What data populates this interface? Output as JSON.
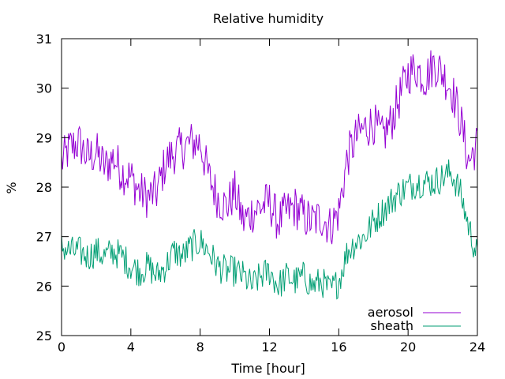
{
  "chart_data": {
    "type": "line",
    "title": "Relative humidity",
    "xlabel": "Time [hour]",
    "ylabel": "%",
    "xlim": [
      0,
      24
    ],
    "ylim": [
      25,
      31
    ],
    "xticks": [
      "0",
      "4",
      "8",
      "12",
      "16",
      "20",
      "24"
    ],
    "yticks": [
      "25",
      "26",
      "27",
      "28",
      "29",
      "30",
      "31"
    ],
    "grid": false,
    "legend_position": "bottom-right",
    "series": [
      {
        "name": "aerosol",
        "color": "#9400d3",
        "x": [
          0,
          0.5,
          1,
          1.5,
          2,
          2.5,
          3,
          3.5,
          4,
          4.5,
          5,
          5.5,
          6,
          6.5,
          7,
          7.5,
          8,
          8.5,
          9,
          9.5,
          10,
          10.5,
          11,
          11.5,
          12,
          12.5,
          13,
          13.5,
          14,
          14.5,
          15,
          15.5,
          16,
          16.5,
          17,
          17.5,
          18,
          18.5,
          19,
          19.5,
          20,
          20.5,
          21,
          21.5,
          22,
          22.5,
          23,
          23.5,
          24
        ],
        "y": [
          28.5,
          28.8,
          28.9,
          28.6,
          28.7,
          28.4,
          28.6,
          28.3,
          28.2,
          27.9,
          27.8,
          27.9,
          28.5,
          28.7,
          28.8,
          28.9,
          28.9,
          28.2,
          27.8,
          27.6,
          27.9,
          27.3,
          27.5,
          27.6,
          27.7,
          27.3,
          27.5,
          27.6,
          27.4,
          27.3,
          27.4,
          27.2,
          27.5,
          28.6,
          29.0,
          29.2,
          29.3,
          29.0,
          29.3,
          29.8,
          30.3,
          30.4,
          30.2,
          30.5,
          30.3,
          30.0,
          29.4,
          28.5,
          28.9
        ]
      },
      {
        "name": "sheath",
        "color": "#009e73",
        "x": [
          0,
          0.5,
          1,
          1.5,
          2,
          2.5,
          3,
          3.5,
          4,
          4.5,
          5,
          5.5,
          6,
          6.5,
          7,
          7.5,
          8,
          8.5,
          9,
          9.5,
          10,
          10.5,
          11,
          11.5,
          12,
          12.5,
          13,
          13.5,
          14,
          14.5,
          15,
          15.5,
          16,
          16.5,
          17,
          17.5,
          18,
          18.5,
          19,
          19.5,
          20,
          20.5,
          21,
          21.5,
          22,
          22.5,
          23,
          23.5,
          24
        ],
        "y": [
          26.8,
          26.7,
          26.7,
          26.6,
          26.7,
          26.6,
          26.7,
          26.6,
          26.4,
          26.3,
          26.4,
          26.2,
          26.4,
          26.7,
          26.6,
          26.8,
          26.9,
          26.7,
          26.4,
          26.3,
          26.3,
          26.2,
          26.0,
          26.2,
          26.3,
          26.0,
          26.2,
          26.1,
          26.2,
          26.0,
          26.1,
          25.9,
          26.1,
          26.7,
          26.9,
          27.0,
          27.3,
          27.5,
          27.7,
          27.9,
          28.0,
          28.1,
          28.1,
          28.1,
          28.2,
          28.3,
          27.9,
          27.2,
          26.6
        ]
      }
    ]
  }
}
